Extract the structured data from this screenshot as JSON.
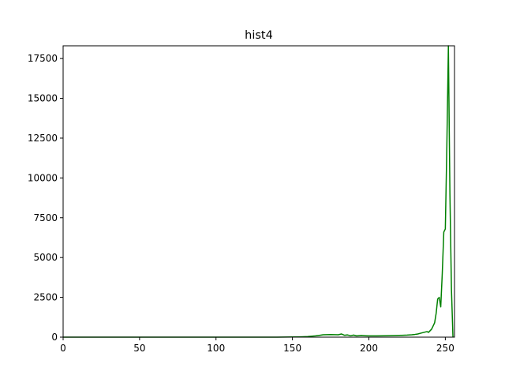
{
  "chart_data": {
    "type": "line",
    "title": "hist4",
    "xlabel": "",
    "ylabel": "",
    "xlim": [
      0,
      256
    ],
    "ylim": [
      0,
      18300
    ],
    "xticks": [
      0,
      50,
      100,
      150,
      200,
      250
    ],
    "yticks": [
      0,
      2500,
      5000,
      7500,
      10000,
      12500,
      15000,
      17500
    ],
    "grid": false,
    "legend": "none",
    "series": [
      {
        "color": "#008000",
        "x": [
          0,
          100,
          140,
          150,
          155,
          160,
          165,
          168,
          170,
          175,
          180,
          182,
          184,
          186,
          188,
          190,
          192,
          195,
          198,
          200,
          205,
          210,
          215,
          220,
          225,
          228,
          230,
          232,
          234,
          236,
          238,
          239,
          240,
          241,
          242,
          243,
          244,
          245,
          246,
          247,
          248,
          249,
          250,
          251,
          252,
          253,
          254,
          255
        ],
        "y": [
          0,
          0,
          0,
          10,
          20,
          40,
          80,
          120,
          150,
          160,
          150,
          200,
          120,
          140,
          90,
          130,
          80,
          110,
          90,
          80,
          80,
          90,
          100,
          110,
          130,
          150,
          170,
          200,
          250,
          300,
          350,
          300,
          400,
          500,
          700,
          900,
          1500,
          2400,
          2500,
          1900,
          4000,
          6600,
          6800,
          12000,
          18300,
          9000,
          3000,
          0
        ]
      }
    ]
  }
}
